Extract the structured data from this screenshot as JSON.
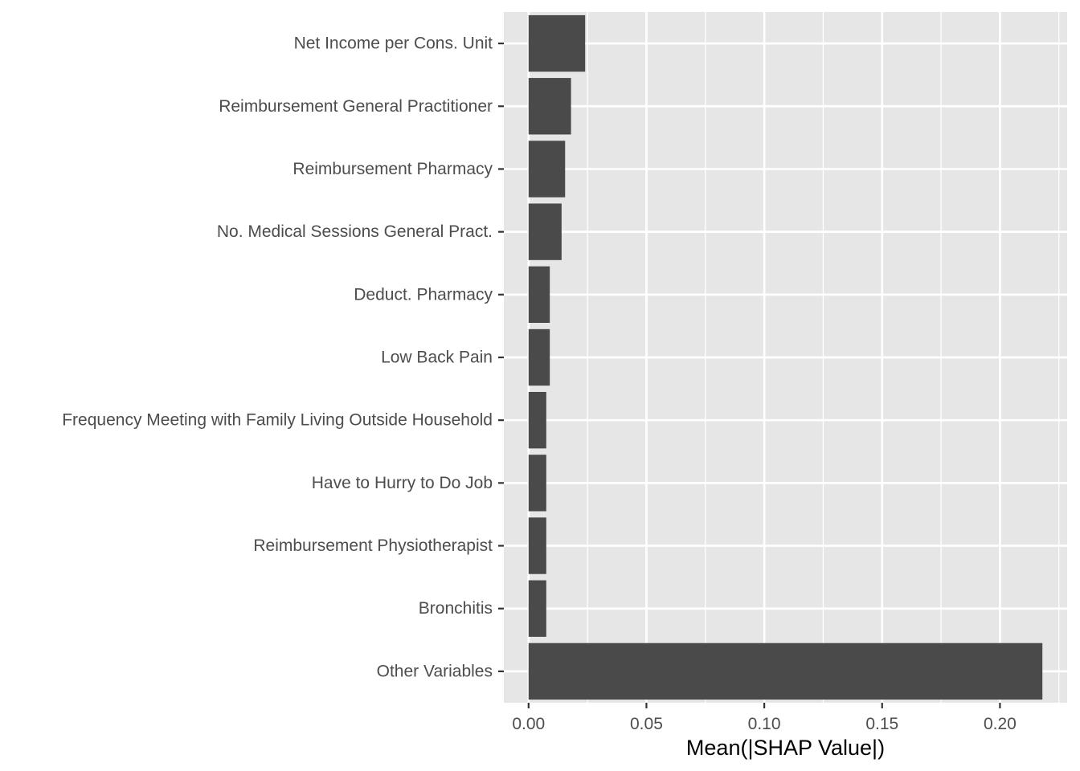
{
  "chart_data": {
    "type": "bar",
    "orientation": "horizontal",
    "title": "",
    "xlabel": "Mean(|SHAP Value|)",
    "ylabel": "",
    "categories": [
      "Net Income per Cons. Unit",
      "Reimbursement General Practitioner",
      "Reimbursement Pharmacy",
      "No. Medical Sessions General Pract.",
      "Deduct. Pharmacy",
      "Low Back Pain",
      "Frequency Meeting with Family Living Outside Household",
      "Have to Hurry to Do Job",
      "Reimbursement Physiotherapist",
      "Bronchitis",
      "Other Variables"
    ],
    "values": [
      0.024,
      0.018,
      0.0155,
      0.014,
      0.009,
      0.009,
      0.0075,
      0.0075,
      0.0075,
      0.0075,
      0.218
    ],
    "xlim": [
      -0.0105,
      0.2285
    ],
    "xticks": [
      0.0,
      0.05,
      0.1,
      0.15,
      0.2
    ],
    "xtick_labels": [
      "0.00",
      "0.05",
      "0.10",
      "0.15",
      "0.20"
    ],
    "grid": true,
    "legend": "none",
    "colors": {
      "bar": "#4a4a4a",
      "panel": "#e6e6e6",
      "grid_major": "#ffffff",
      "tick_text": "#4d4d4d",
      "title_text": "#000000"
    }
  }
}
